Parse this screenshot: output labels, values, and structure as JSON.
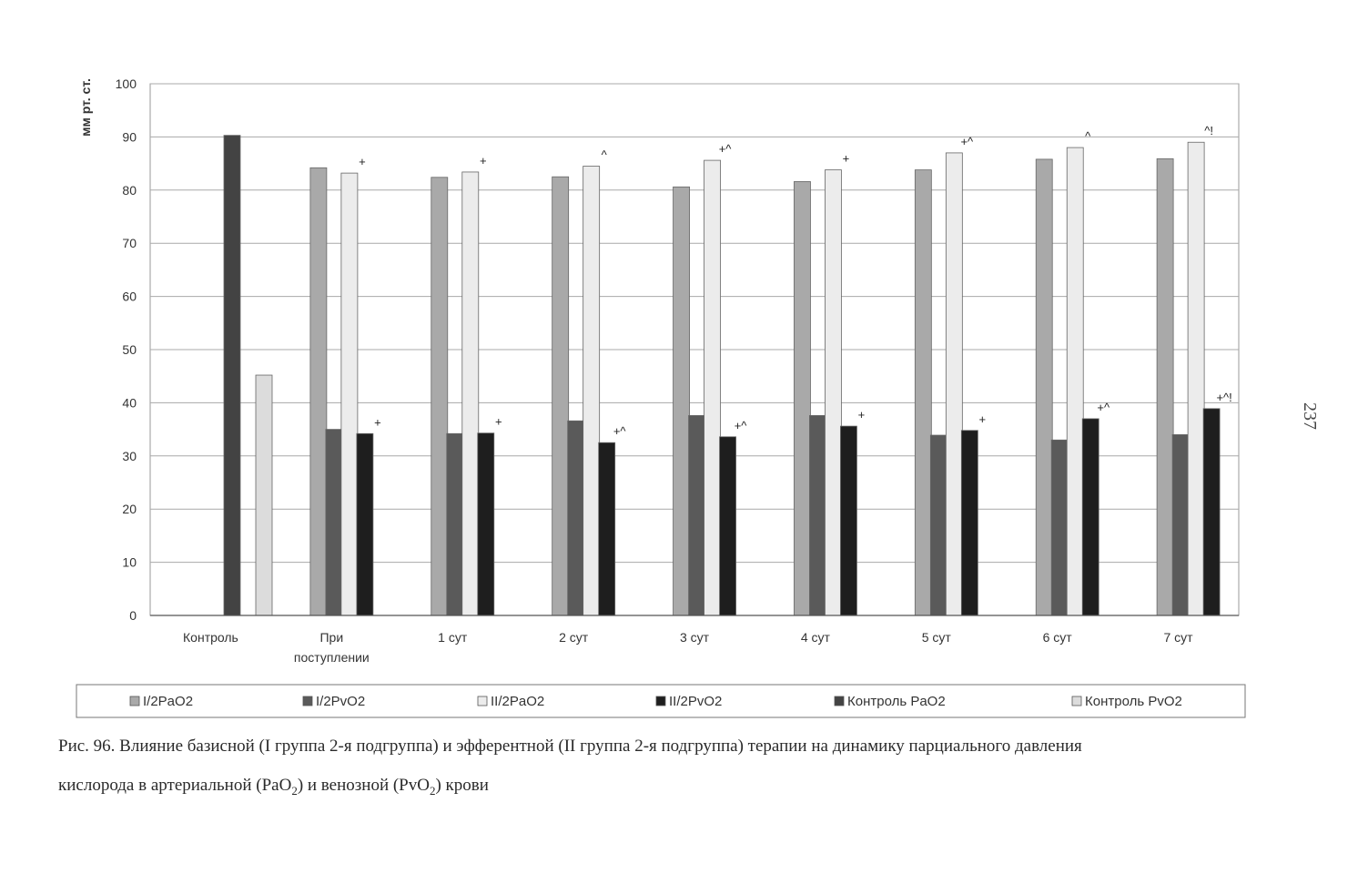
{
  "chart_data": {
    "type": "bar",
    "ylabel": "мм рт. ст.",
    "ylim": [
      0,
      100
    ],
    "yticks": [
      0,
      10,
      20,
      30,
      40,
      50,
      60,
      70,
      80,
      90,
      100
    ],
    "ytick_labels": [
      "0",
      "10",
      "20",
      "30",
      "40",
      "50",
      "60",
      "70",
      "80",
      "90",
      "100"
    ],
    "grid": true,
    "legend_position": "bottom",
    "categories": [
      {
        "line1": "Контроль",
        "line2": ""
      },
      {
        "line1": "При",
        "line2": "поступлении"
      },
      {
        "line1": "1 сут",
        "line2": ""
      },
      {
        "line1": "2 сут",
        "line2": ""
      },
      {
        "line1": "3 сут",
        "line2": ""
      },
      {
        "line1": "4 сут",
        "line2": ""
      },
      {
        "line1": "5 сут",
        "line2": ""
      },
      {
        "line1": "6 сут",
        "line2": ""
      },
      {
        "line1": "7 сут",
        "line2": ""
      }
    ],
    "series": [
      {
        "name": "I/2PaO2",
        "color": "#a9a9a9",
        "values": [
          null,
          84.2,
          82.4,
          82.5,
          80.6,
          81.6,
          83.8,
          85.8,
          85.9
        ]
      },
      {
        "name": "I/2PvO2",
        "color": "#5a5a5a",
        "values": [
          null,
          35.0,
          34.2,
          36.6,
          37.6,
          37.6,
          33.9,
          33.0,
          34.0
        ]
      },
      {
        "name": "II/2PaO2",
        "color": "#ececec",
        "values": [
          null,
          83.2,
          83.4,
          84.5,
          85.6,
          83.8,
          87.0,
          88.0,
          89.0
        ]
      },
      {
        "name": "II/2PvO2",
        "color": "#1e1e1e",
        "values": [
          null,
          34.2,
          34.3,
          32.5,
          33.6,
          35.6,
          34.8,
          37.0,
          38.9
        ]
      },
      {
        "name": "Контроль PaO2",
        "color": "#434343",
        "values": [
          90.3,
          null,
          null,
          null,
          null,
          null,
          null,
          null,
          null
        ]
      },
      {
        "name": "Контроль PvO2",
        "color": "#dcdcdc",
        "values": [
          45.2,
          null,
          null,
          null,
          null,
          null,
          null,
          null,
          null
        ]
      }
    ],
    "annotations": [
      {
        "category": 1,
        "series": 2,
        "text": "+"
      },
      {
        "category": 1,
        "series": 3,
        "text": "+"
      },
      {
        "category": 2,
        "series": 2,
        "text": "+"
      },
      {
        "category": 2,
        "series": 3,
        "text": "+"
      },
      {
        "category": 3,
        "series": 2,
        "text": "^"
      },
      {
        "category": 3,
        "series": 3,
        "text": "+^"
      },
      {
        "category": 4,
        "series": 2,
        "text": "+^"
      },
      {
        "category": 4,
        "series": 3,
        "text": "+^"
      },
      {
        "category": 5,
        "series": 2,
        "text": "+"
      },
      {
        "category": 5,
        "series": 3,
        "text": "+"
      },
      {
        "category": 6,
        "series": 2,
        "text": "+^"
      },
      {
        "category": 6,
        "series": 3,
        "text": "+"
      },
      {
        "category": 7,
        "series": 2,
        "text": "^"
      },
      {
        "category": 7,
        "series": 3,
        "text": "+^"
      },
      {
        "category": 8,
        "series": 2,
        "text": "^!"
      },
      {
        "category": 8,
        "series": 3,
        "text": "+^!"
      }
    ]
  },
  "page": {
    "page_number": "237",
    "caption_line1": "Рис. 96. Влияние базисной (I группа 2-я подгруппа) и эфферентной (II группа 2-я подгруппа) терапии на динамику парциального давления",
    "caption_line2_a": "кислорода в артериальной (PaO",
    "caption_sub1": "2",
    "caption_line2_b": ") и венозной (PvO",
    "caption_sub2": "2",
    "caption_line2_c": ") крови"
  }
}
